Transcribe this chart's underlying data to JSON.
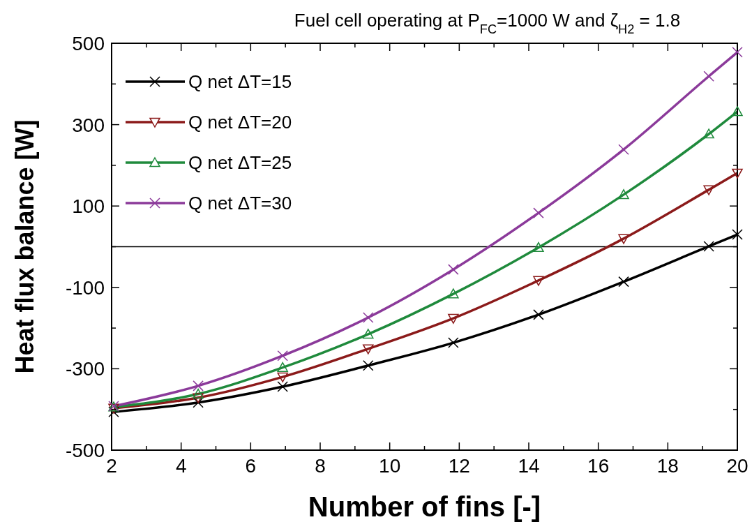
{
  "chart_data": {
    "type": "line",
    "title": "Fuel cell operating at P$_{FC}$=1000 W and ζ$_{H2}$ = 1.8",
    "xlabel": "Number of fins [-]",
    "ylabel": "Heat flux balance [W]",
    "x": [
      2.06,
      4.49,
      6.92,
      9.38,
      11.83,
      14.28,
      16.73,
      19.18,
      20
    ],
    "xlim": [
      2,
      20
    ],
    "xticks": [
      2,
      {
        "value": 3,
        "label": null
      },
      4,
      {
        "value": 5,
        "label": null
      },
      6,
      {
        "value": 7,
        "label": null
      },
      8,
      {
        "value": 9,
        "label": null
      },
      10,
      {
        "value": 11,
        "label": null
      },
      12,
      {
        "value": 13,
        "label": null
      },
      14,
      {
        "value": 15,
        "label": null
      },
      16,
      {
        "value": 17,
        "label": null
      },
      18,
      {
        "value": 19,
        "label": null
      },
      20
    ],
    "ylim": [
      -500,
      500
    ],
    "yticks": [
      -500,
      {
        "value": -400,
        "label": null
      },
      -300,
      {
        "value": -200,
        "label": null
      },
      -100,
      {
        "value": 0,
        "label": null
      },
      100,
      {
        "value": 200,
        "label": null
      },
      300,
      {
        "value": 400,
        "label": null
      },
      500
    ],
    "series": [
      {
        "name": "Q net ΔT=15",
        "color": "#000000",
        "marker": "cross",
        "values": [
          -406,
          -383,
          -344,
          -292,
          -236,
          -167,
          -86,
          1,
          30
        ]
      },
      {
        "name": "Q net ΔT=20",
        "color": "#8b1a1a",
        "marker": "triangle-down",
        "values": [
          -397,
          -371,
          -320,
          -251,
          -176,
          -83,
          20,
          140,
          181
        ]
      },
      {
        "name": "Q net ΔT=25",
        "color": "#1f8a3c",
        "marker": "triangle",
        "values": [
          -394,
          -362,
          -297,
          -215,
          -116,
          -2,
          128,
          277,
          332
        ]
      },
      {
        "name": "Q net ΔT=30",
        "color": "#8b3a9a",
        "marker": "cross",
        "values": [
          -392,
          -342,
          -268,
          -174,
          -56,
          83,
          239,
          419,
          478
        ]
      }
    ],
    "ref_lines": [
      {
        "axis": "y",
        "value": 0,
        "color": "#000000"
      }
    ],
    "legend": "top left",
    "grid": false,
    "line_style": "solid"
  }
}
